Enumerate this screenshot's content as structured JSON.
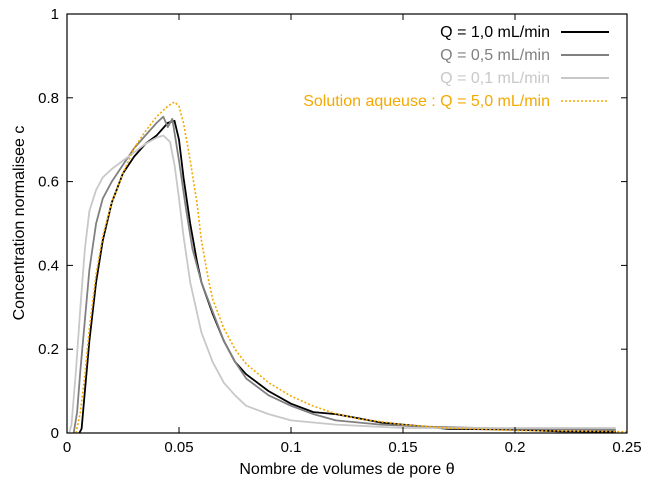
{
  "chart_data": {
    "type": "line",
    "title": "",
    "xlabel": "Nombre de volumes de pore θ",
    "ylabel": "Concentration normalisee c",
    "xlim": [
      0,
      0.25
    ],
    "ylim": [
      0,
      1
    ],
    "xticks": [
      0,
      0.05,
      0.1,
      0.15,
      0.2,
      0.25
    ],
    "xtick_labels": [
      "0",
      "0.05",
      "0.1",
      "0.15",
      "0.2",
      "0.25"
    ],
    "yticks": [
      0,
      0.2,
      0.4,
      0.6,
      0.8,
      1
    ],
    "ytick_labels": [
      "0",
      "0.2",
      "0.4",
      "0.6",
      "0.8",
      "1"
    ],
    "grid": false,
    "legend_position": "top-right",
    "series": [
      {
        "name": "Q = 1,0 mL/min",
        "color": "#000000",
        "style": "solid",
        "x": [
          0.0055,
          0.0065,
          0.008,
          0.01,
          0.013,
          0.016,
          0.02,
          0.025,
          0.03,
          0.035,
          0.04,
          0.045,
          0.048,
          0.05,
          0.052,
          0.055,
          0.058,
          0.06,
          0.065,
          0.07,
          0.075,
          0.08,
          0.09,
          0.1,
          0.11,
          0.12,
          0.13,
          0.14,
          0.15,
          0.17,
          0.2,
          0.22,
          0.245
        ],
        "y": [
          0,
          0.01,
          0.1,
          0.22,
          0.36,
          0.46,
          0.55,
          0.62,
          0.66,
          0.69,
          0.71,
          0.74,
          0.745,
          0.7,
          0.61,
          0.5,
          0.41,
          0.36,
          0.285,
          0.22,
          0.17,
          0.14,
          0.1,
          0.07,
          0.05,
          0.045,
          0.035,
          0.025,
          0.02,
          0.01,
          0.008,
          0.004,
          0.003
        ]
      },
      {
        "name": "Q = 0,5 mL/min",
        "color": "#808080",
        "style": "solid",
        "x": [
          0.003,
          0.0045,
          0.006,
          0.008,
          0.01,
          0.013,
          0.016,
          0.02,
          0.025,
          0.03,
          0.035,
          0.04,
          0.043,
          0.045,
          0.047,
          0.05,
          0.053,
          0.056,
          0.06,
          0.065,
          0.07,
          0.075,
          0.08,
          0.09,
          0.1,
          0.11,
          0.12,
          0.14,
          0.16,
          0.2,
          0.245
        ],
        "y": [
          0,
          0.05,
          0.15,
          0.27,
          0.39,
          0.5,
          0.56,
          0.6,
          0.64,
          0.68,
          0.71,
          0.74,
          0.755,
          0.73,
          0.75,
          0.65,
          0.54,
          0.44,
          0.36,
          0.29,
          0.22,
          0.17,
          0.13,
          0.09,
          0.065,
          0.045,
          0.03,
          0.02,
          0.015,
          0.01,
          0.008
        ]
      },
      {
        "name": "Q = 0,1 mL/min",
        "color": "#c8c8c8",
        "style": "solid",
        "x": [
          0.001,
          0.002,
          0.004,
          0.006,
          0.008,
          0.01,
          0.013,
          0.016,
          0.02,
          0.025,
          0.03,
          0.035,
          0.04,
          0.043,
          0.046,
          0.048,
          0.05,
          0.052,
          0.055,
          0.06,
          0.065,
          0.07,
          0.075,
          0.08,
          0.09,
          0.1,
          0.12,
          0.15,
          0.2,
          0.245
        ],
        "y": [
          0,
          0.02,
          0.15,
          0.3,
          0.44,
          0.53,
          0.58,
          0.61,
          0.63,
          0.65,
          0.67,
          0.69,
          0.705,
          0.71,
          0.695,
          0.64,
          0.56,
          0.47,
          0.36,
          0.24,
          0.17,
          0.12,
          0.09,
          0.065,
          0.045,
          0.03,
          0.02,
          0.012,
          0.012,
          0.012
        ]
      },
      {
        "name": "Solution aqueuse : Q = 5,0 mL/min",
        "color": "#f5a800",
        "style": "dotted",
        "x": [
          0.004,
          0.006,
          0.008,
          0.01,
          0.013,
          0.016,
          0.02,
          0.025,
          0.03,
          0.035,
          0.04,
          0.045,
          0.048,
          0.05,
          0.052,
          0.055,
          0.058,
          0.06,
          0.063,
          0.065,
          0.07,
          0.075,
          0.08,
          0.09,
          0.1,
          0.11,
          0.12,
          0.13,
          0.15,
          0.17,
          0.2,
          0.25
        ],
        "y": [
          0,
          0.05,
          0.14,
          0.25,
          0.38,
          0.47,
          0.55,
          0.62,
          0.68,
          0.72,
          0.755,
          0.78,
          0.79,
          0.78,
          0.74,
          0.65,
          0.55,
          0.46,
          0.37,
          0.32,
          0.25,
          0.2,
          0.165,
          0.12,
          0.088,
          0.064,
          0.046,
          0.034,
          0.02,
          0.012,
          0.006,
          0.003
        ]
      }
    ]
  }
}
